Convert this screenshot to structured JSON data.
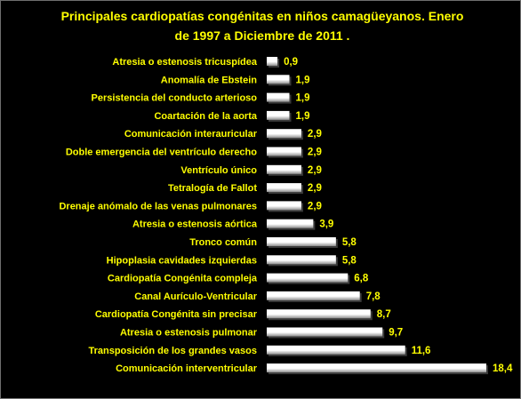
{
  "colors": {
    "background": "#000000",
    "title": "#ffff00",
    "category_text": "#ffff00",
    "value_text": "#ffff00",
    "bar_light": "#ffffff",
    "bar_dark": "#8c8c8c",
    "bar_shadow": "#3a3a3a"
  },
  "chart_data": {
    "type": "bar",
    "orientation": "horizontal",
    "title_lines": [
      "Principales cardiopatías congénitas en niños camagüeyanos. Enero",
      "de 1997 a Diciembre de 2011 ."
    ],
    "xlabel": "",
    "ylabel": "",
    "xlim": [
      0,
      18.4
    ],
    "grid": false,
    "legend": "none",
    "categories": [
      "Atresia o estenosis tricuspídea",
      "Anomalía de Ebstein",
      "Persistencia del conducto arterioso",
      "Coartación de la aorta",
      "Comunicación interauricular",
      "Doble emergencia del ventrículo derecho",
      "Ventrículo único",
      "Tetralogía de Fallot",
      "Drenaje anómalo de las venas pulmonares",
      "Atresia o estenosis aórtica",
      "Tronco común",
      "Hipoplasia cavidades izquierdas",
      "Cardiopatía Congénita compleja",
      "Canal Aurículo-Ventricular",
      "Cardiopatía Congénita sin precisar",
      "Atresia o estenosis pulmonar",
      "Transposición de los grandes vasos",
      "Comunicación interventricular"
    ],
    "values": [
      0.9,
      1.9,
      1.9,
      1.9,
      2.9,
      2.9,
      2.9,
      2.9,
      2.9,
      3.9,
      5.8,
      5.8,
      6.8,
      7.8,
      8.7,
      9.7,
      11.6,
      18.4
    ],
    "value_labels": [
      "0,9",
      "1,9",
      "1,9",
      "1,9",
      "2,9",
      "2,9",
      "2,9",
      "2,9",
      "2,9",
      "3,9",
      "5,8",
      "5,8",
      "6,8",
      "7,8",
      "8,7",
      "9,7",
      "11,6",
      "18,4"
    ]
  }
}
